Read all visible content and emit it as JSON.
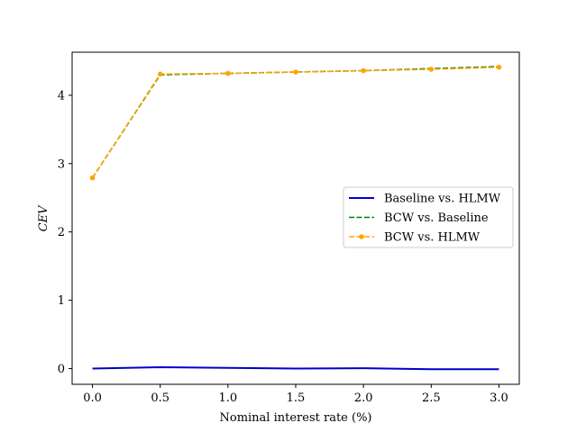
{
  "chart_data": {
    "type": "line",
    "xlabel": "Nominal interest rate (%)",
    "ylabel": "CEV",
    "xlim": [
      -0.15,
      3.15
    ],
    "ylim": [
      -0.23,
      4.63
    ],
    "xticks": [
      0.0,
      0.5,
      1.0,
      1.5,
      2.0,
      2.5,
      3.0
    ],
    "xtick_labels": [
      "0.0",
      "0.5",
      "1.0",
      "1.5",
      "2.0",
      "2.5",
      "3.0"
    ],
    "yticks": [
      0,
      1,
      2,
      3,
      4
    ],
    "ytick_labels": [
      "0",
      "1",
      "2",
      "3",
      "4"
    ],
    "grid": false,
    "legend_position": "center-right",
    "x": [
      0.0,
      0.5,
      1.0,
      1.5,
      2.0,
      2.5,
      3.0
    ],
    "series": [
      {
        "name": "Baseline vs. HLMW",
        "values": [
          0.0,
          0.02,
          0.01,
          0.0,
          0.005,
          -0.01,
          -0.01
        ],
        "color": "#0000cc",
        "style": "solid",
        "marker": "none"
      },
      {
        "name": "BCW vs. Baseline",
        "values": [
          2.79,
          4.3,
          4.32,
          4.34,
          4.36,
          4.39,
          4.42
        ],
        "color": "#008000",
        "style": "dashed",
        "marker": "none"
      },
      {
        "name": "BCW vs. HLMW",
        "values": [
          2.79,
          4.31,
          4.32,
          4.34,
          4.36,
          4.38,
          4.41
        ],
        "color": "#ffa500",
        "style": "dashed",
        "marker": "circle"
      }
    ]
  }
}
